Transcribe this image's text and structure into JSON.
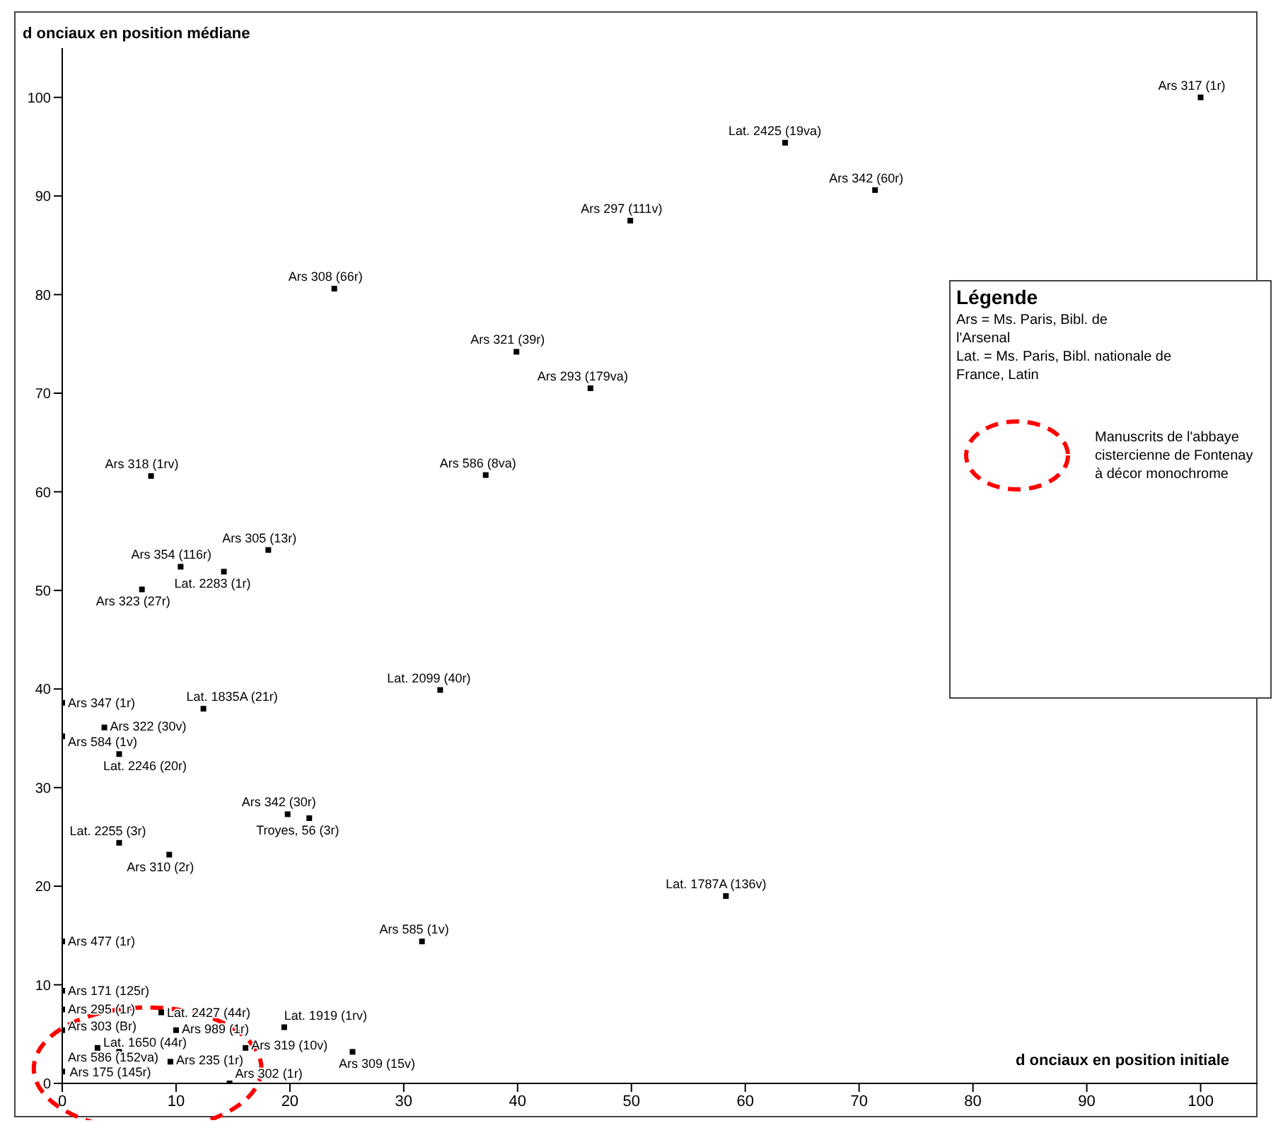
{
  "chart_data": {
    "type": "scatter",
    "xlabel": "d onciaux en position initiale",
    "ylabel": "d onciaux en position médiane",
    "annotations": [
      "Légende",
      "Ars = Ms. Paris, Bibl. de l'Arsenal",
      "Lat. = Ms. Paris, Bibl. nationale de France, Latin",
      "Manuscrits de l'abbaye cistercienne de Fontenay à décor monochrome"
    ],
    "xlim": [
      0,
      105
    ],
    "ylim": [
      0,
      105
    ],
    "xticks": [
      0,
      10,
      20,
      30,
      40,
      50,
      60,
      70,
      80,
      90,
      100
    ],
    "yticks": [
      0,
      10,
      20,
      30,
      40,
      50,
      60,
      70,
      80,
      90,
      100
    ],
    "grid": false,
    "legend": false,
    "marker": "square",
    "series": [
      {
        "color": "#000000",
        "x": [
          100,
          63.5,
          71.4,
          49.9,
          23.9,
          39.9,
          46.4,
          7.8,
          37.2,
          18.1,
          10.4,
          14.2,
          7.0,
          33.2,
          0,
          12.4,
          3.7,
          0,
          5.0,
          5.0,
          9.4,
          19.8,
          21.7,
          58.3,
          31.6,
          0,
          0,
          0,
          8.7,
          0,
          10.0,
          19.5,
          3.1,
          5.0,
          16.1,
          25.5,
          9.5,
          0,
          14.7
        ],
        "values": [
          100,
          95.4,
          90.6,
          87.5,
          80.6,
          74.2,
          70.5,
          61.6,
          61.7,
          54.1,
          52.4,
          51.9,
          50.1,
          39.9,
          38.6,
          38.0,
          36.1,
          35.2,
          33.4,
          24.4,
          23.2,
          27.3,
          26.9,
          19.0,
          14.4,
          14.4,
          9.4,
          7.5,
          7.2,
          5.4,
          5.4,
          5.7,
          3.6,
          3.2,
          3.6,
          3.2,
          2.2,
          1.2,
          0
        ],
        "value_labels": [
          "Ars 317 (1r)",
          "Lat. 2425 (19va)",
          "Ars 342 (60r)",
          "Ars 297 (111v)",
          "Ars 308 (66r)",
          "Ars 321 (39r)",
          "Ars 293 (179va)",
          "Ars 318 (1rv)",
          "Ars 586 (8va)",
          "Ars 305 (13r)",
          "Ars 354 (116r)",
          "Lat. 2283 (1r)",
          "Ars 323 (27r)",
          "Lat. 2099 (40r)",
          "Ars 347 (1r)",
          "Lat. 1835A (21r)",
          "Ars 322 (30v)",
          "Ars 584 (1v)",
          "Lat. 2246 (20r)",
          "Lat. 2255 (3r)",
          "Ars 310 (2r)",
          "Ars 342 (30r)",
          "Troyes, 56 (3r)",
          "Lat. 1787A (136v)",
          "Ars 585 (1v)",
          "Ars 477 (1r)",
          "Ars 171 (125r)",
          "Ars 295 (1r)",
          "Lat. 2427 (44r)",
          "Ars 303 (Br)",
          "Ars 989 (1r)",
          "Lat. 1919 (1rv)",
          "Lat. 1650 (44r)",
          "Ars 175 (145r)",
          "Ars 319 (10v)",
          "Ars 309 (15v)",
          "Ars 235 (1r)",
          "Ars 586 (152va)",
          "Ars 302 (1r)"
        ]
      }
    ]
  }
}
